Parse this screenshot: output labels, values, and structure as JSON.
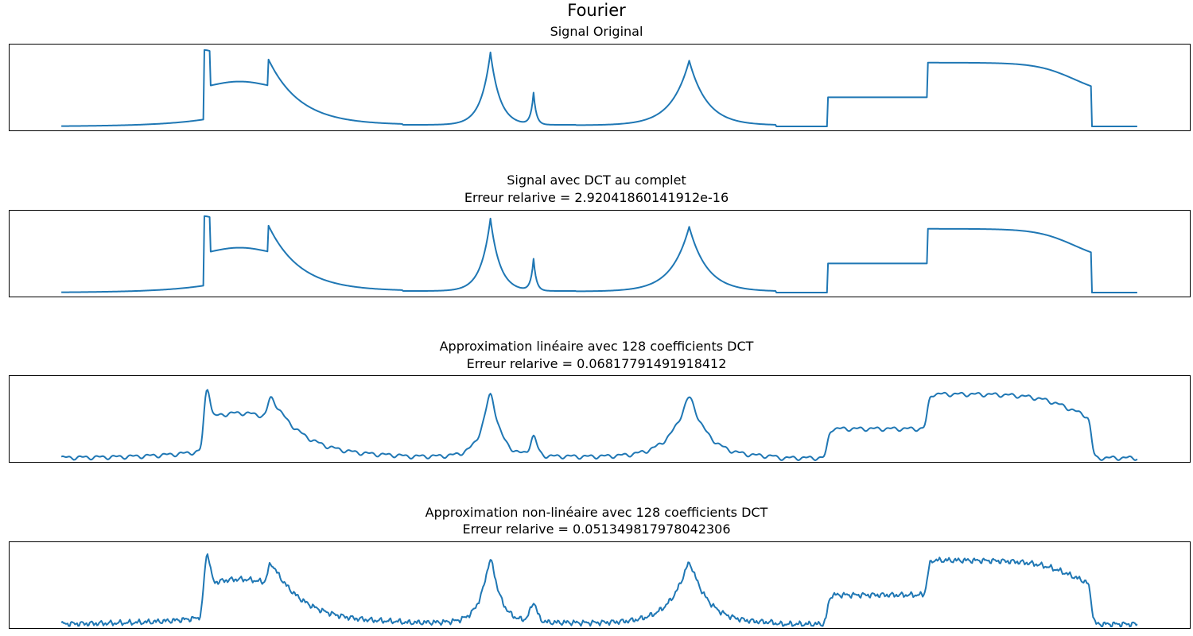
{
  "figure": {
    "suptitle": "Fourier"
  },
  "colors": {
    "line": "#1f77b4"
  },
  "chart_data": [
    {
      "type": "line",
      "title": "Signal Original",
      "subtitle": "",
      "xlabel": "",
      "ylabel": "",
      "xticks": "hidden",
      "yticks": "hidden",
      "grid": false,
      "xlim": [
        -50,
        1073
      ],
      "ylim": [
        -0.05,
        1.05
      ],
      "series": [
        {
          "variant": "exact",
          "x_range": [
            0,
            1023
          ]
        }
      ]
    },
    {
      "type": "line",
      "title": "Signal avec DCT au complet",
      "subtitle": "Erreur relarive = 2.92041860141912e-16",
      "xlabel": "",
      "ylabel": "",
      "xticks": "hidden",
      "yticks": "hidden",
      "grid": false,
      "xlim": [
        -50,
        1073
      ],
      "ylim": [
        -0.05,
        1.05
      ],
      "series": [
        {
          "variant": "exact",
          "x_range": [
            0,
            1023
          ]
        }
      ]
    },
    {
      "type": "line",
      "title": "Approximation linéaire avec 128 coefficients DCT",
      "subtitle": "Erreur relarive = 0.06817791491918412",
      "xlabel": "",
      "ylabel": "",
      "xticks": "hidden",
      "yticks": "hidden",
      "grid": false,
      "xlim": [
        -50,
        1073
      ],
      "ylim": [
        -0.05,
        1.05
      ],
      "series": [
        {
          "variant": "linear",
          "x_range": [
            0,
            1023
          ]
        }
      ]
    },
    {
      "type": "line",
      "title": "Approximation non-linéaire avec 128 coefficients DCT",
      "subtitle": "Erreur relarive = 0.051349817978042306",
      "xlabel": "",
      "ylabel": "",
      "xticks": "hidden",
      "yticks": "hidden",
      "grid": false,
      "xlim": [
        -50,
        1073
      ],
      "ylim": [
        -0.05,
        1.05
      ],
      "series": [
        {
          "variant": "nonlinear",
          "x_range": [
            0,
            1023
          ]
        }
      ]
    }
  ]
}
